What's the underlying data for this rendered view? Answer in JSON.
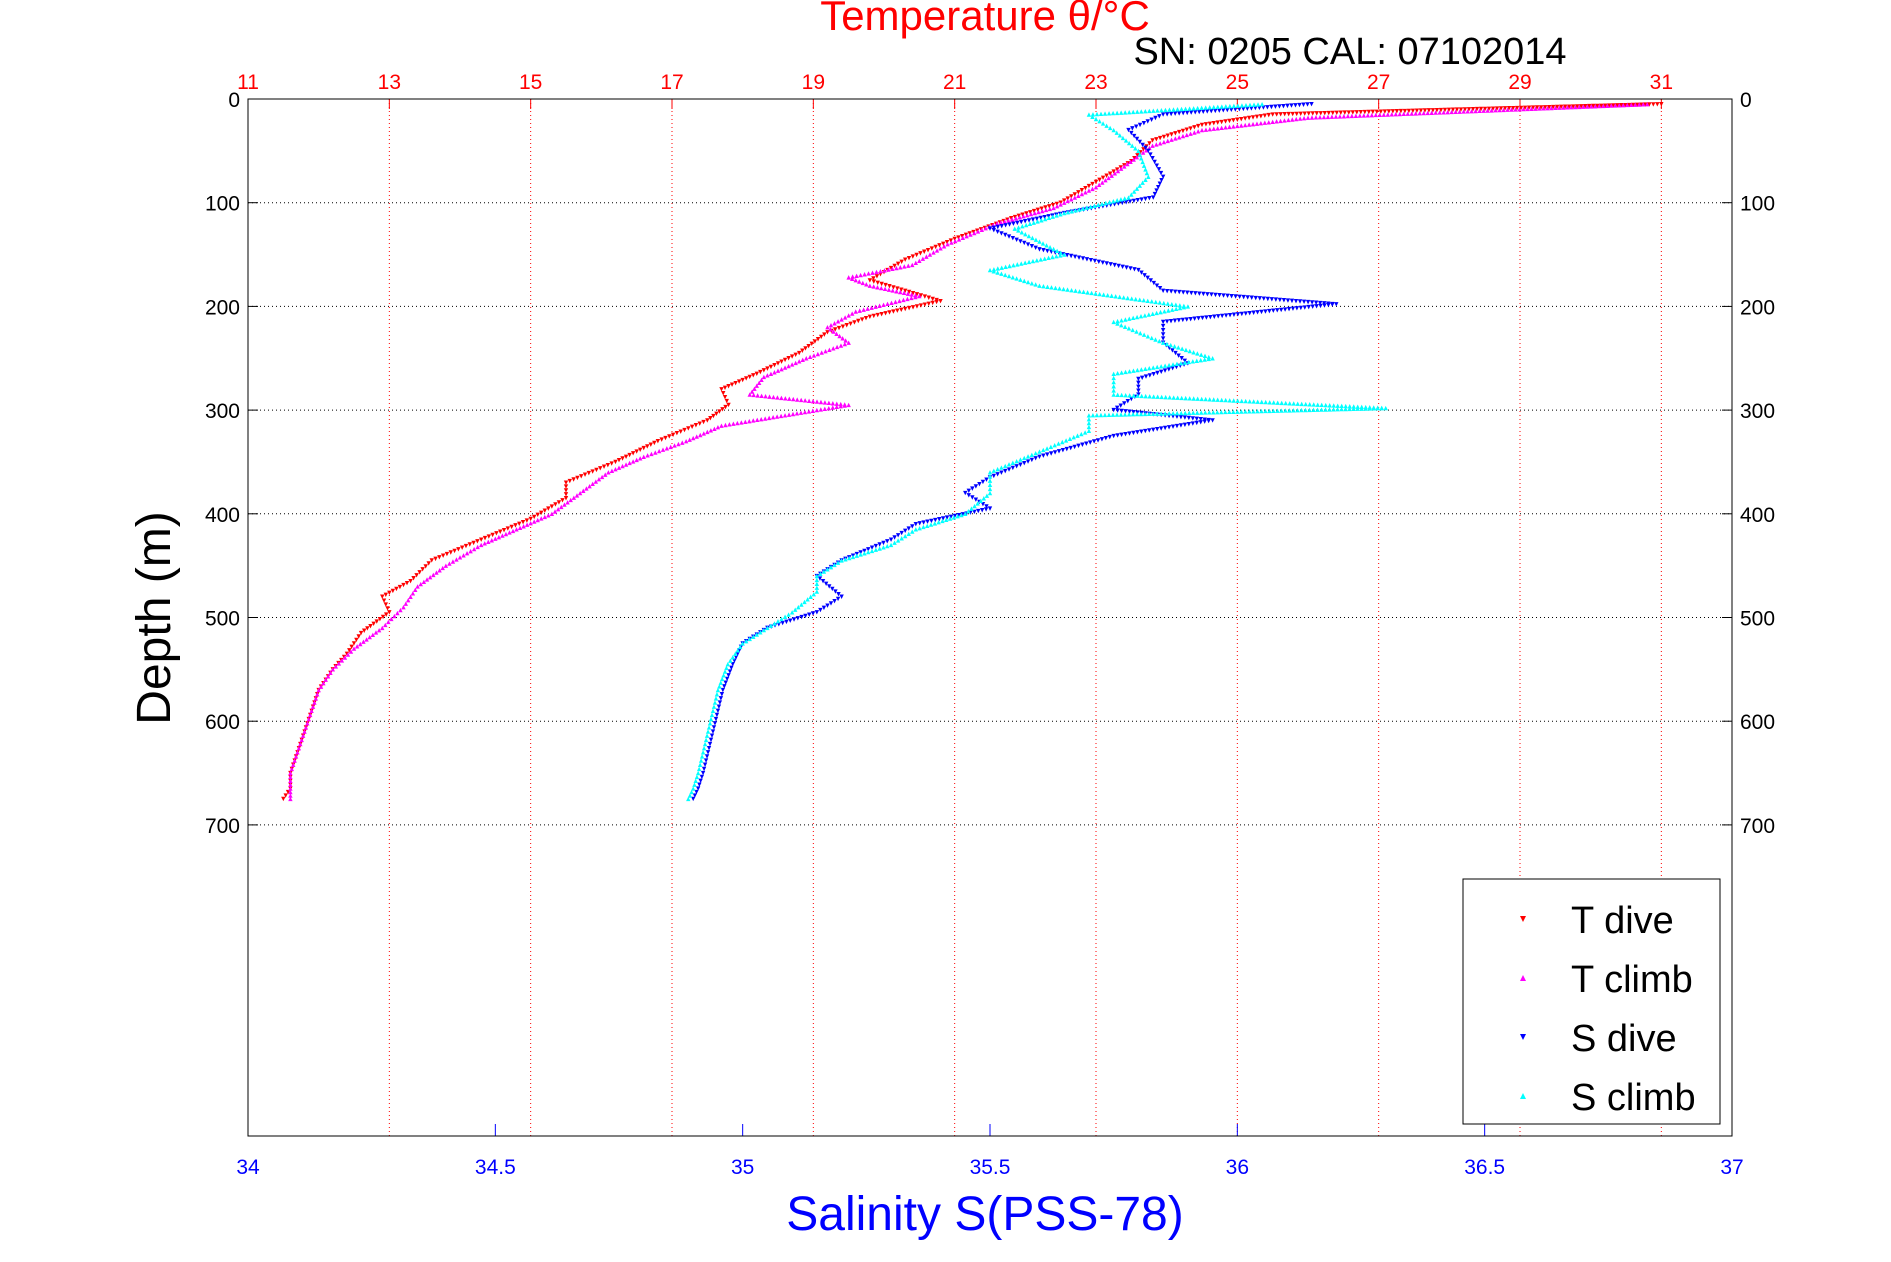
{
  "chart_data": {
    "type": "scatter",
    "title": "Temperature θ/°C",
    "subtitle": "SN: 0205  CAL: 07102014",
    "xlabel": "Salinity S(PSS-78)",
    "ylabel": "Depth (m)",
    "x2label": "Temperature θ/°C",
    "temperature_axis": {
      "range": [
        11,
        32
      ],
      "ticks": [
        "11",
        "13",
        "15",
        "17",
        "19",
        "21",
        "23",
        "25",
        "27",
        "29",
        "31"
      ]
    },
    "salinity_axis": {
      "range": [
        34,
        37
      ],
      "ticks": [
        "34",
        "34.5",
        "35",
        "35.5",
        "36",
        "36.5",
        "37"
      ]
    },
    "depth_axis": {
      "range": [
        0,
        1000
      ],
      "reversed": true,
      "ticks": [
        "0",
        "100",
        "200",
        "300",
        "400",
        "500",
        "600",
        "700"
      ]
    },
    "grid": true,
    "legend_position": "bottom-right",
    "series": [
      {
        "name": "T dive",
        "axis": "temperature",
        "color": "#ff0000",
        "marker": "triangle-down",
        "points": [
          [
            31.0,
            5
          ],
          [
            25.5,
            15
          ],
          [
            24.5,
            25
          ],
          [
            23.8,
            40
          ],
          [
            23.5,
            60
          ],
          [
            23.0,
            80
          ],
          [
            22.5,
            100
          ],
          [
            21.8,
            115
          ],
          [
            21.0,
            135
          ],
          [
            20.3,
            155
          ],
          [
            19.8,
            175
          ],
          [
            20.8,
            195
          ],
          [
            19.8,
            210
          ],
          [
            19.2,
            225
          ],
          [
            18.8,
            245
          ],
          [
            18.2,
            265
          ],
          [
            17.7,
            280
          ],
          [
            17.8,
            295
          ],
          [
            17.5,
            310
          ],
          [
            16.8,
            330
          ],
          [
            16.2,
            350
          ],
          [
            15.5,
            370
          ],
          [
            15.5,
            385
          ],
          [
            15.0,
            405
          ],
          [
            14.3,
            425
          ],
          [
            13.6,
            445
          ],
          [
            13.3,
            465
          ],
          [
            12.9,
            480
          ],
          [
            13.0,
            495
          ],
          [
            12.6,
            515
          ],
          [
            12.4,
            535
          ],
          [
            12.2,
            550
          ],
          [
            12.0,
            570
          ],
          [
            11.9,
            590
          ],
          [
            11.8,
            610
          ],
          [
            11.7,
            630
          ],
          [
            11.6,
            650
          ],
          [
            11.6,
            665
          ],
          [
            11.5,
            675
          ]
        ]
      },
      {
        "name": "T climb",
        "axis": "temperature",
        "color": "#ff00ff",
        "marker": "triangle-up",
        "points": [
          [
            30.8,
            5
          ],
          [
            26.0,
            18
          ],
          [
            24.5,
            30
          ],
          [
            23.8,
            45
          ],
          [
            23.4,
            65
          ],
          [
            23.0,
            85
          ],
          [
            22.4,
            105
          ],
          [
            21.6,
            120
          ],
          [
            20.9,
            140
          ],
          [
            20.4,
            160
          ],
          [
            19.5,
            172
          ],
          [
            19.8,
            180
          ],
          [
            20.5,
            190
          ],
          [
            19.6,
            205
          ],
          [
            19.2,
            220
          ],
          [
            19.5,
            235
          ],
          [
            18.9,
            250
          ],
          [
            18.3,
            268
          ],
          [
            18.1,
            285
          ],
          [
            19.5,
            295
          ],
          [
            18.6,
            305
          ],
          [
            17.7,
            315
          ],
          [
            17.2,
            330
          ],
          [
            16.6,
            345
          ],
          [
            16.1,
            360
          ],
          [
            15.7,
            380
          ],
          [
            15.3,
            400
          ],
          [
            14.8,
            415
          ],
          [
            14.3,
            430
          ],
          [
            13.8,
            450
          ],
          [
            13.4,
            470
          ],
          [
            13.2,
            490
          ],
          [
            12.9,
            510
          ],
          [
            12.5,
            530
          ],
          [
            12.2,
            550
          ],
          [
            12.0,
            570
          ],
          [
            11.9,
            590
          ],
          [
            11.8,
            610
          ],
          [
            11.7,
            630
          ],
          [
            11.6,
            650
          ],
          [
            11.6,
            665
          ],
          [
            11.6,
            675
          ]
        ]
      },
      {
        "name": "S dive",
        "axis": "salinity",
        "color": "#0000ff",
        "marker": "triangle-down",
        "points": [
          [
            36.15,
            5
          ],
          [
            35.85,
            15
          ],
          [
            35.78,
            30
          ],
          [
            35.82,
            50
          ],
          [
            35.85,
            75
          ],
          [
            35.83,
            95
          ],
          [
            35.65,
            110
          ],
          [
            35.5,
            125
          ],
          [
            35.6,
            145
          ],
          [
            35.8,
            165
          ],
          [
            35.85,
            185
          ],
          [
            36.2,
            198
          ],
          [
            35.85,
            215
          ],
          [
            35.85,
            235
          ],
          [
            35.9,
            255
          ],
          [
            35.8,
            270
          ],
          [
            35.8,
            285
          ],
          [
            35.75,
            300
          ],
          [
            35.95,
            310
          ],
          [
            35.75,
            325
          ],
          [
            35.6,
            345
          ],
          [
            35.5,
            365
          ],
          [
            35.45,
            380
          ],
          [
            35.5,
            395
          ],
          [
            35.35,
            410
          ],
          [
            35.3,
            425
          ],
          [
            35.2,
            445
          ],
          [
            35.15,
            460
          ],
          [
            35.2,
            480
          ],
          [
            35.15,
            495
          ],
          [
            35.05,
            510
          ],
          [
            35.0,
            525
          ],
          [
            34.98,
            545
          ],
          [
            34.96,
            570
          ],
          [
            34.95,
            590
          ],
          [
            34.94,
            610
          ],
          [
            34.93,
            630
          ],
          [
            34.92,
            650
          ],
          [
            34.91,
            665
          ],
          [
            34.9,
            675
          ]
        ]
      },
      {
        "name": "S climb",
        "axis": "salinity",
        "color": "#00ffff",
        "marker": "triangle-up",
        "points": [
          [
            36.05,
            5
          ],
          [
            35.7,
            15
          ],
          [
            35.75,
            30
          ],
          [
            35.8,
            50
          ],
          [
            35.82,
            75
          ],
          [
            35.78,
            95
          ],
          [
            35.65,
            110
          ],
          [
            35.55,
            125
          ],
          [
            35.65,
            150
          ],
          [
            35.5,
            165
          ],
          [
            35.6,
            180
          ],
          [
            35.9,
            200
          ],
          [
            35.75,
            215
          ],
          [
            35.85,
            235
          ],
          [
            35.95,
            250
          ],
          [
            35.75,
            265
          ],
          [
            35.75,
            285
          ],
          [
            36.3,
            298
          ],
          [
            35.7,
            305
          ],
          [
            35.7,
            320
          ],
          [
            35.6,
            340
          ],
          [
            35.5,
            360
          ],
          [
            35.5,
            380
          ],
          [
            35.45,
            400
          ],
          [
            35.35,
            415
          ],
          [
            35.3,
            430
          ],
          [
            35.2,
            445
          ],
          [
            35.15,
            460
          ],
          [
            35.15,
            475
          ],
          [
            35.1,
            495
          ],
          [
            35.05,
            510
          ],
          [
            35.0,
            525
          ],
          [
            34.97,
            545
          ],
          [
            34.95,
            570
          ],
          [
            34.94,
            590
          ],
          [
            34.93,
            610
          ],
          [
            34.92,
            630
          ],
          [
            34.91,
            650
          ],
          [
            34.9,
            665
          ],
          [
            34.89,
            675
          ]
        ]
      }
    ]
  }
}
